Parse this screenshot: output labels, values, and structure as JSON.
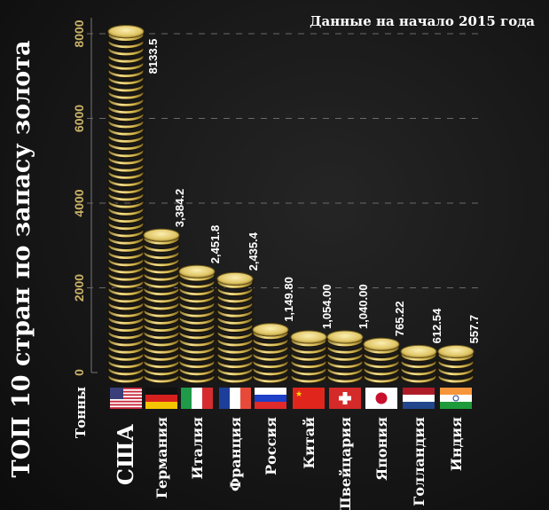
{
  "chart_data": {
    "type": "bar",
    "title": "ТОП 10 стран по запасу золота",
    "subtitle": "Данные на начало 2015 года",
    "ylabel": "Тонны",
    "xlabel": "",
    "ylim": [
      0,
      8000
    ],
    "yticks": [
      "0",
      "2000",
      "4000",
      "6000",
      "8000"
    ],
    "grid": true,
    "categories": [
      "США",
      "Германия",
      "Италия",
      "Франция",
      "Россия",
      "Китай",
      "Швейцария",
      "Япония",
      "Голландия",
      "Индия"
    ],
    "flags": [
      "us-flag",
      "germany-flag",
      "italy-flag",
      "france-flag",
      "russia-flag",
      "china-flag",
      "switzerland-flag",
      "japan-flag",
      "netherlands-flag",
      "india-flag"
    ],
    "values": [
      8133.5,
      3384.2,
      2451.8,
      2435.4,
      1149.8,
      1054.0,
      1040.0,
      765.22,
      612.54,
      557.7
    ],
    "value_labels": [
      "8133.5",
      "3,384.2",
      "2,451.8",
      "2,435.4",
      "1,149.80",
      "1,054.00",
      "1,040.00",
      "765.22",
      "612.54",
      "557.7"
    ],
    "colors": {
      "coin": "#d9bf5a",
      "coin_light": "#f5e39a",
      "coin_edge": "#1a1408",
      "tick_label": "#c9b266",
      "text": "#ffffff"
    }
  }
}
